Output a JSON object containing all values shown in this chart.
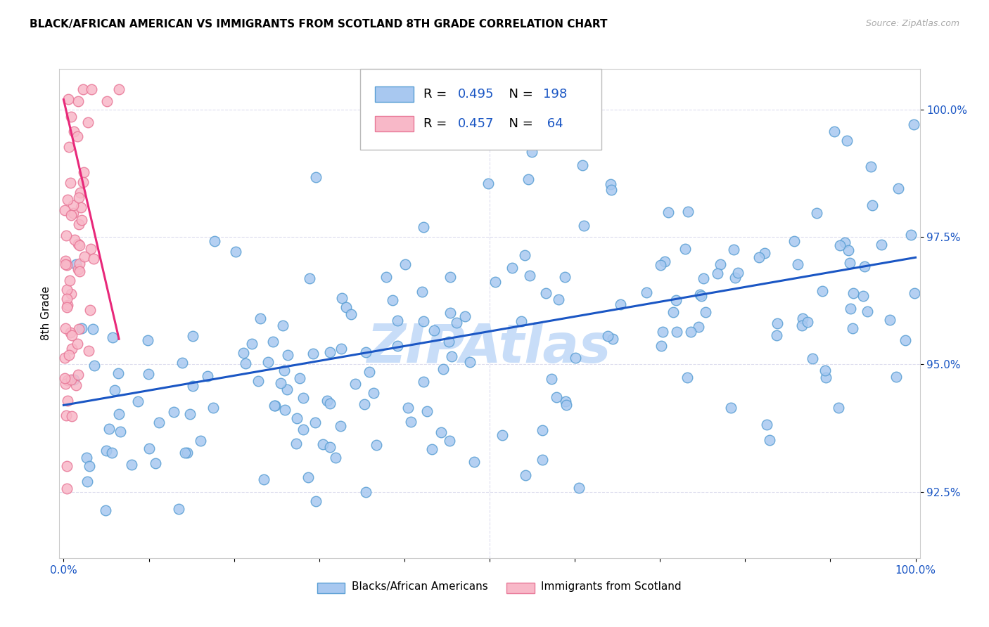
{
  "title": "BLACK/AFRICAN AMERICAN VS IMMIGRANTS FROM SCOTLAND 8TH GRADE CORRELATION CHART",
  "source": "Source: ZipAtlas.com",
  "ylabel": "8th Grade",
  "ytick_labels": [
    "92.5%",
    "95.0%",
    "97.5%",
    "100.0%"
  ],
  "ytick_values": [
    0.925,
    0.95,
    0.975,
    1.0
  ],
  "ymin": 0.912,
  "ymax": 1.008,
  "xmin": -0.005,
  "xmax": 1.005,
  "blue_R": 0.495,
  "blue_N": 198,
  "pink_R": 0.457,
  "pink_N": 64,
  "blue_color": "#a8c8f0",
  "blue_edge_color": "#5a9fd4",
  "pink_color": "#f8b8c8",
  "pink_edge_color": "#e87898",
  "trend_blue_color": "#1a56c4",
  "trend_pink_color": "#e8287a",
  "watermark": "ZIPAtlas",
  "watermark_color": "#c8ddf8",
  "legend_label_blue": "Blacks/African Americans",
  "legend_label_pink": "Immigrants from Scotland",
  "blue_trend_x0": 0.0,
  "blue_trend_y0": 0.942,
  "blue_trend_x1": 1.0,
  "blue_trend_y1": 0.971,
  "pink_trend_x0": 0.0,
  "pink_trend_y0": 1.002,
  "pink_trend_x1": 0.065,
  "pink_trend_y1": 0.955
}
